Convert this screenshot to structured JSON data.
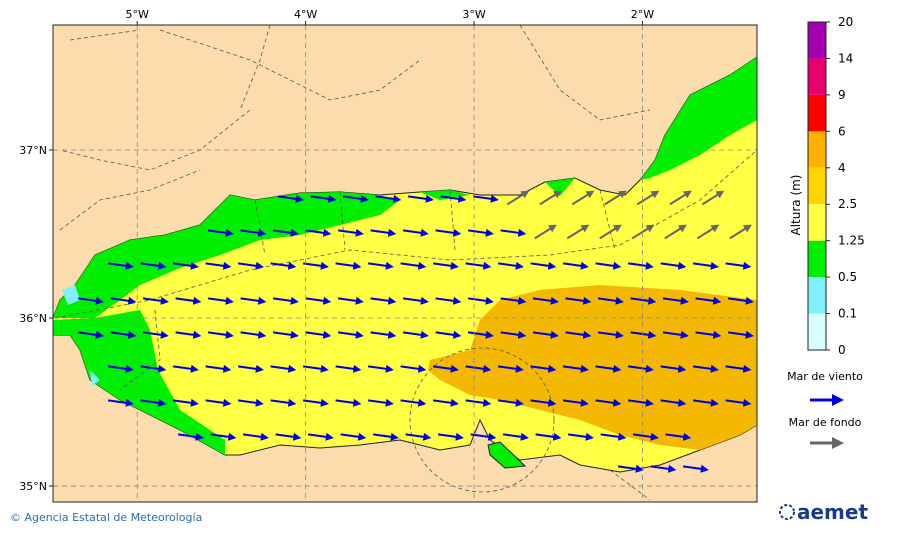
{
  "map": {
    "xticks": [
      {
        "value": -5,
        "label": "5°W"
      },
      {
        "value": -4,
        "label": "4°W"
      },
      {
        "value": -3,
        "label": "3°W"
      },
      {
        "value": -2,
        "label": "2°W"
      }
    ],
    "yticks": [
      {
        "value": 37,
        "label": "37°N"
      },
      {
        "value": 36,
        "label": "36°N"
      },
      {
        "value": 35,
        "label": "35°N"
      }
    ],
    "xlim": [
      -5.5,
      -1.32
    ],
    "ylim": [
      34.905,
      37.744
    ]
  },
  "colorbar": {
    "title": "Altura (m)",
    "levels": [
      0,
      0.1,
      0.5,
      1.25,
      2.5,
      4,
      6,
      9,
      14,
      20
    ],
    "colors": [
      "#d8ffff",
      "#80f0ff",
      "#00ee00",
      "#ffff44",
      "#ffd500",
      "#ffb000",
      "#ff0000",
      "#e8006c",
      "#a000b0"
    ]
  },
  "legend": {
    "wind_sea": "Mar de viento",
    "swell": "Mar de fondo"
  },
  "footer": {
    "credit": "© Agencia Estatal de Meteorología",
    "logo": "aemet"
  }
}
